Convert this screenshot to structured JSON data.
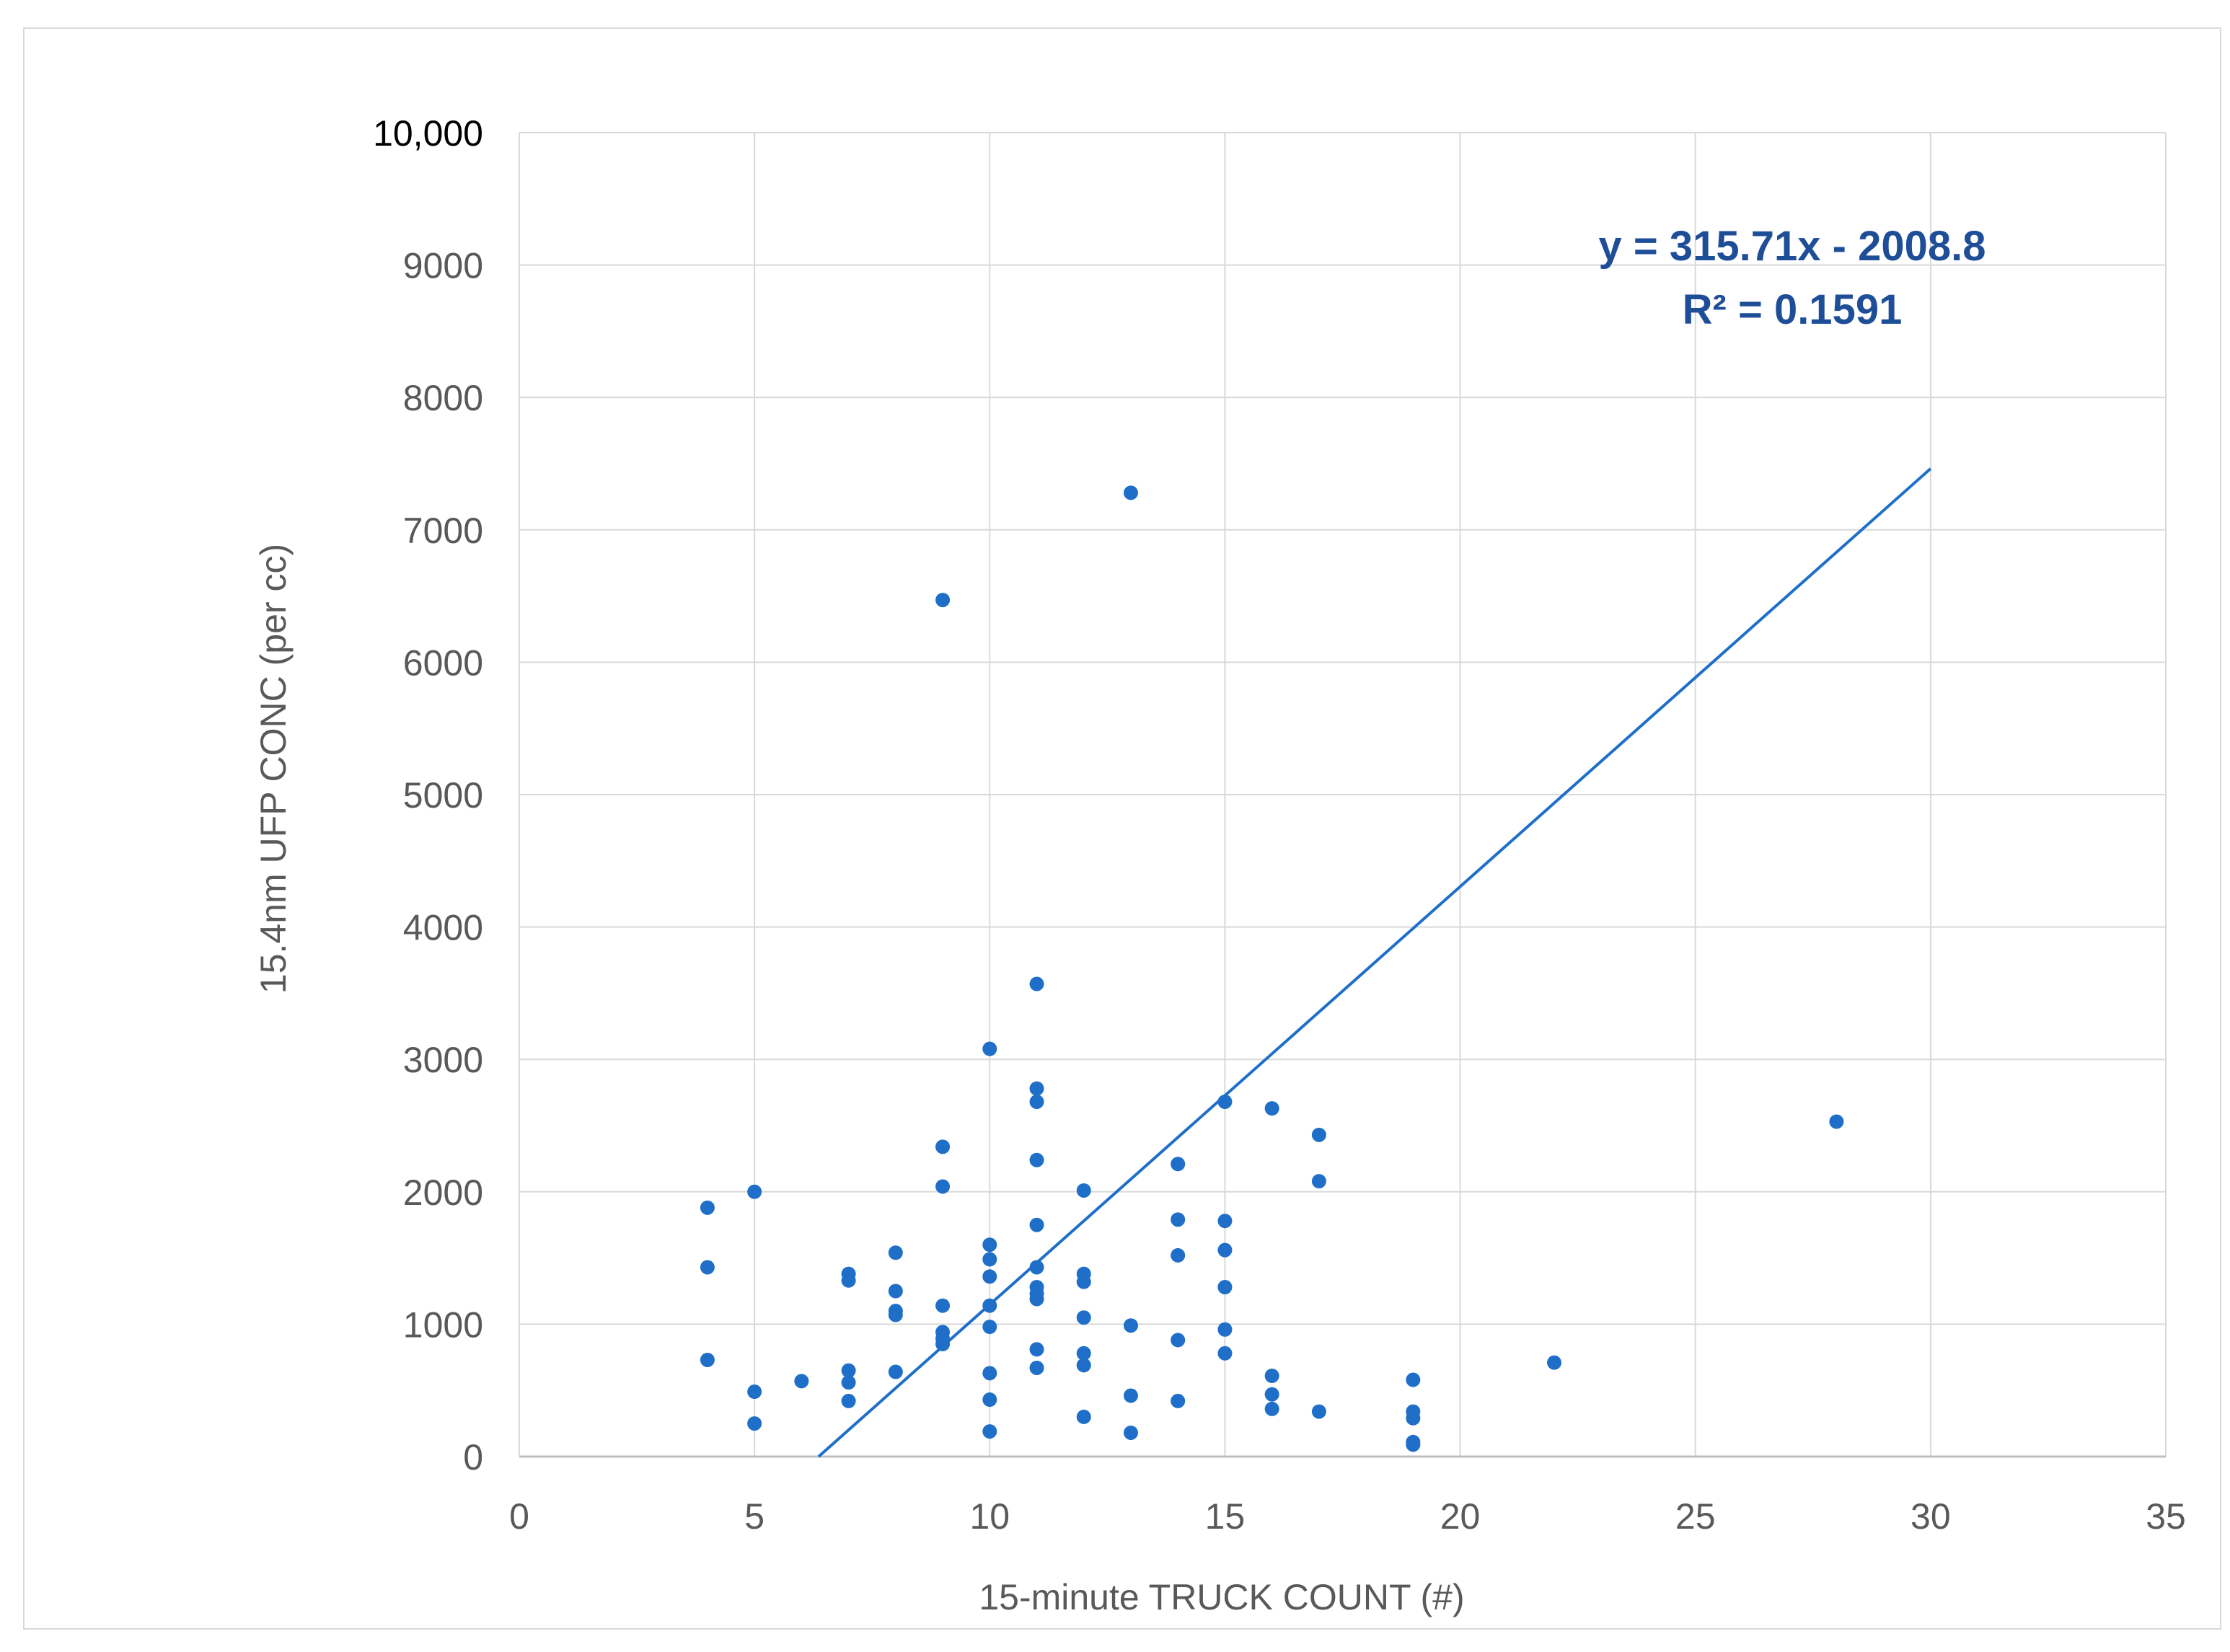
{
  "chart_data": {
    "type": "scatter",
    "title": "",
    "xlabel": "15-minute TRUCK COUNT (#)",
    "ylabel": "15.4nm UFP CONC (per cc)",
    "xlim": [
      0,
      35
    ],
    "ylim": [
      0,
      10000
    ],
    "x_ticks": [
      "0",
      "5",
      "10",
      "15",
      "20",
      "25",
      "30",
      "35"
    ],
    "y_ticks": [
      "0",
      "1000",
      "2000",
      "3000",
      "4000",
      "5000",
      "6000",
      "7000",
      "8000",
      "9000",
      "10,000"
    ],
    "grid": true,
    "legend": "none",
    "marker_color": "#1f6fc9",
    "trendline": {
      "type": "linear",
      "slope": 315.71,
      "intercept": -2008.8,
      "x_range": [
        6.36,
        30
      ],
      "color": "#1f6fc9",
      "equation_label": "y = 315.71x - 2008.8",
      "r2_label": "R² = 0.1591",
      "label_color": "#1f4e99"
    },
    "points": [
      [
        4,
        1880
      ],
      [
        4,
        1430
      ],
      [
        4,
        730
      ],
      [
        5,
        2000
      ],
      [
        5,
        490
      ],
      [
        5,
        250
      ],
      [
        6,
        570
      ],
      [
        7,
        1380
      ],
      [
        7,
        1330
      ],
      [
        7,
        650
      ],
      [
        7,
        560
      ],
      [
        7,
        420
      ],
      [
        8,
        1540
      ],
      [
        8,
        1250
      ],
      [
        8,
        1100
      ],
      [
        8,
        1070
      ],
      [
        8,
        640
      ],
      [
        9,
        6470
      ],
      [
        9,
        2340
      ],
      [
        9,
        2040
      ],
      [
        9,
        1140
      ],
      [
        9,
        940
      ],
      [
        9,
        890
      ],
      [
        9,
        850
      ],
      [
        10,
        3080
      ],
      [
        10,
        1600
      ],
      [
        10,
        1490
      ],
      [
        10,
        1360
      ],
      [
        10,
        1140
      ],
      [
        10,
        980
      ],
      [
        10,
        630
      ],
      [
        10,
        430
      ],
      [
        10,
        190
      ],
      [
        11,
        3570
      ],
      [
        11,
        2780
      ],
      [
        11,
        2680
      ],
      [
        11,
        2240
      ],
      [
        11,
        1750
      ],
      [
        11,
        1430
      ],
      [
        11,
        1280
      ],
      [
        11,
        1230
      ],
      [
        11,
        1190
      ],
      [
        11,
        810
      ],
      [
        11,
        670
      ],
      [
        12,
        2010
      ],
      [
        12,
        1380
      ],
      [
        12,
        1320
      ],
      [
        12,
        1050
      ],
      [
        12,
        780
      ],
      [
        12,
        690
      ],
      [
        12,
        300
      ],
      [
        13,
        7280
      ],
      [
        13,
        990
      ],
      [
        13,
        460
      ],
      [
        13,
        180
      ],
      [
        14,
        2210
      ],
      [
        14,
        1790
      ],
      [
        14,
        1520
      ],
      [
        14,
        880
      ],
      [
        14,
        420
      ],
      [
        15,
        2680
      ],
      [
        15,
        1780
      ],
      [
        15,
        1560
      ],
      [
        15,
        1280
      ],
      [
        15,
        960
      ],
      [
        15,
        780
      ],
      [
        16,
        2630
      ],
      [
        16,
        610
      ],
      [
        16,
        470
      ],
      [
        16,
        360
      ],
      [
        17,
        2430
      ],
      [
        17,
        2080
      ],
      [
        17,
        340
      ],
      [
        19,
        580
      ],
      [
        19,
        340
      ],
      [
        19,
        290
      ],
      [
        19,
        110
      ],
      [
        19,
        90
      ],
      [
        22,
        710
      ],
      [
        28,
        2530
      ]
    ]
  }
}
